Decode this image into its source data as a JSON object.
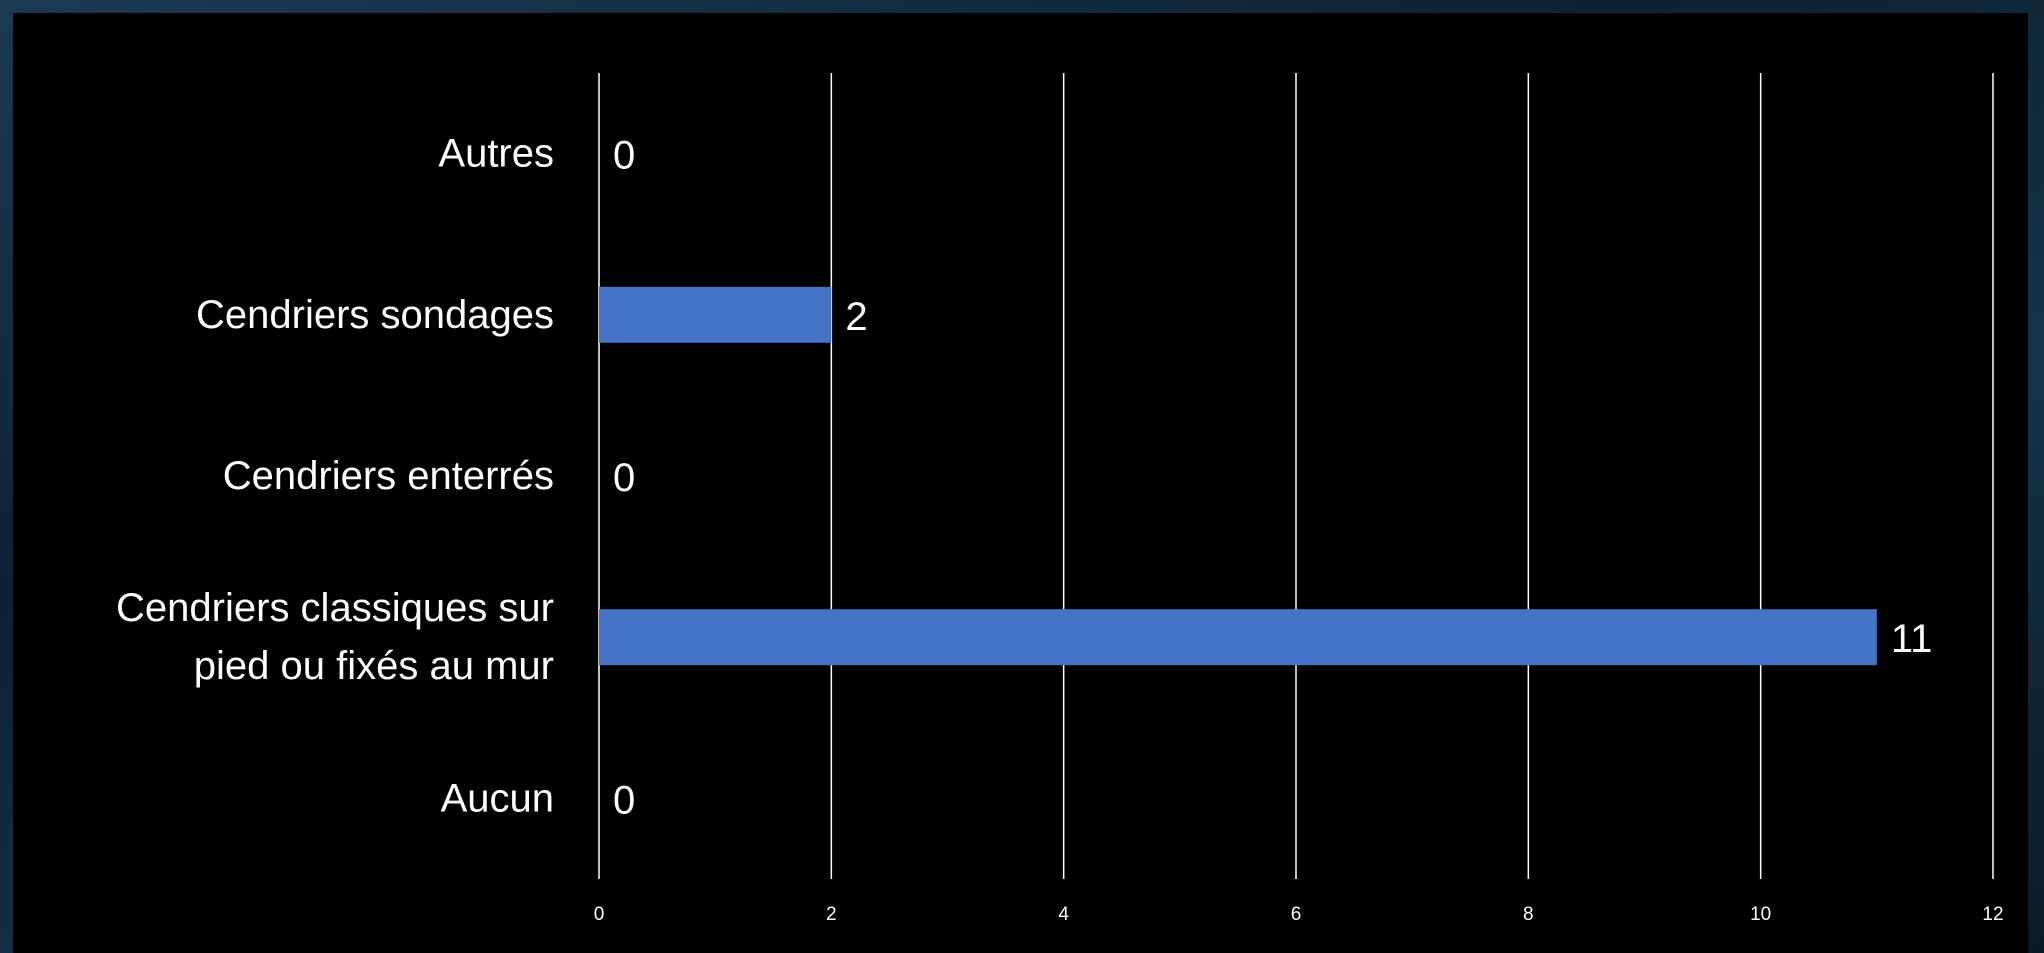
{
  "chart_data": {
    "type": "bar",
    "orientation": "horizontal",
    "title": "",
    "xlabel": "",
    "ylabel": "",
    "categories": [
      "Autres",
      "Cendriers sondages",
      "Cendriers enterrés",
      "Cendriers classiques sur pied ou fixés au mur",
      "Aucun"
    ],
    "category_lines": [
      [
        "Autres"
      ],
      [
        "Cendriers sondages"
      ],
      [
        "Cendriers enterrés"
      ],
      [
        "Cendriers classiques sur",
        "pied ou fixés au mur"
      ],
      [
        "Aucun"
      ]
    ],
    "values": [
      0,
      2,
      0,
      11,
      0
    ],
    "data_labels": [
      "0",
      "2",
      "0",
      "11",
      "0"
    ],
    "xlim": [
      0,
      12
    ],
    "x_ticks": [
      0,
      2,
      4,
      6,
      8,
      10,
      12
    ],
    "x_tick_labels": [
      "0",
      "2",
      "4",
      "6",
      "8",
      "10",
      "12"
    ],
    "grid": "vertical",
    "legend": "none",
    "colors": {
      "bar": "#4472c4",
      "background": "#000000",
      "gridline": "#ffffff",
      "text": "#ffffff"
    }
  }
}
